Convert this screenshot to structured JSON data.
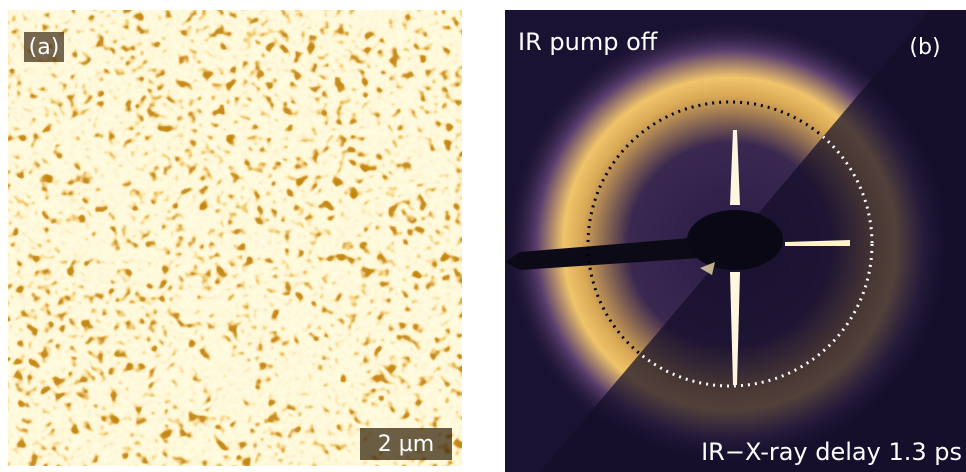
{
  "panel_a": {
    "label": "(a)",
    "scale_bar": "2 µm"
  },
  "panel_b": {
    "label": "(b)",
    "top_label": "IR pump off",
    "bottom_label": "IR−X-ray delay 1.3 ps"
  }
}
